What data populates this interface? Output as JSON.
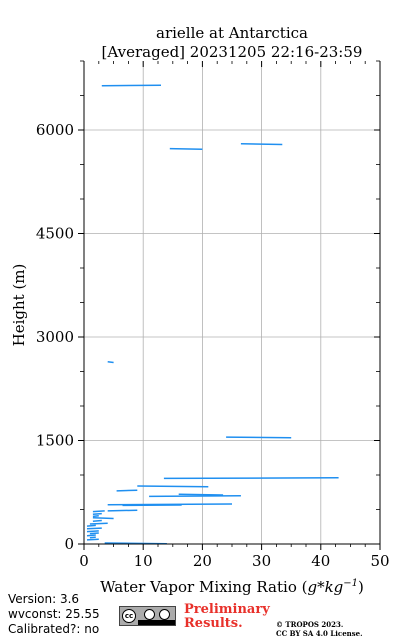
{
  "chart_data": {
    "type": "line",
    "title_line1": "arielle at Antarctica",
    "title_line2": "[Averaged] 20231205 22:16-23:59",
    "xlabel_prefix": "Water Vapor Mixing Ratio (",
    "xlabel_math": "g*kg",
    "xlabel_exp": "−1",
    "xlabel_suffix": ")",
    "ylabel": "Height (m)",
    "xlim": [
      0,
      50
    ],
    "ylim": [
      0,
      7000
    ],
    "xticks": [
      "0",
      "10",
      "20",
      "30",
      "40",
      "50"
    ],
    "yticks": [
      "0",
      "1500",
      "3000",
      "4500",
      "6000"
    ],
    "grid": true,
    "line_color": "#1f8ff0",
    "series": [
      {
        "points": [
          [
            3,
            6640
          ],
          [
            13,
            6650
          ]
        ]
      },
      {
        "points": [
          [
            14.5,
            5730
          ],
          [
            20,
            5720
          ]
        ]
      },
      {
        "points": [
          [
            26.5,
            5800
          ],
          [
            33.5,
            5790
          ]
        ]
      },
      {
        "points": [
          [
            4,
            2640
          ],
          [
            5,
            2630
          ]
        ]
      },
      {
        "points": [
          [
            24,
            1550
          ],
          [
            35,
            1540
          ]
        ]
      },
      {
        "points": [
          [
            13.5,
            950
          ],
          [
            43,
            960
          ]
        ]
      },
      {
        "points": [
          [
            9,
            840
          ],
          [
            21,
            830
          ]
        ]
      },
      {
        "points": [
          [
            16,
            720
          ],
          [
            23.5,
            710
          ]
        ]
      },
      {
        "points": [
          [
            11,
            690
          ],
          [
            26.5,
            700
          ]
        ]
      },
      {
        "points": [
          [
            5.5,
            770
          ],
          [
            9,
            780
          ]
        ]
      },
      {
        "points": [
          [
            4,
            570
          ],
          [
            25,
            580
          ]
        ]
      },
      {
        "points": [
          [
            6.5,
            560
          ],
          [
            16.5,
            565
          ]
        ]
      },
      {
        "points": [
          [
            4,
            480
          ],
          [
            9,
            490
          ]
        ]
      },
      {
        "points": [
          [
            1.5,
            470
          ],
          [
            3.5,
            480
          ]
        ]
      },
      {
        "points": [
          [
            1.5,
            430
          ],
          [
            3,
            440
          ]
        ]
      },
      {
        "points": [
          [
            1.5,
            400
          ],
          [
            2.5,
            410
          ]
        ]
      },
      {
        "points": [
          [
            1.5,
            380
          ],
          [
            5,
            370
          ]
        ]
      },
      {
        "points": [
          [
            1.5,
            330
          ],
          [
            3,
            340
          ]
        ]
      },
      {
        "points": [
          [
            1,
            290
          ],
          [
            4,
            300
          ]
        ]
      },
      {
        "points": [
          [
            0.5,
            260
          ],
          [
            2,
            270
          ]
        ]
      },
      {
        "points": [
          [
            0.5,
            220
          ],
          [
            3,
            230
          ]
        ]
      },
      {
        "points": [
          [
            0.5,
            180
          ],
          [
            2.5,
            190
          ]
        ]
      },
      {
        "points": [
          [
            1,
            150
          ],
          [
            2.5,
            160
          ]
        ]
      },
      {
        "points": [
          [
            0.5,
            120
          ],
          [
            2,
            130
          ]
        ]
      },
      {
        "points": [
          [
            1,
            90
          ],
          [
            2,
            100
          ]
        ]
      },
      {
        "points": [
          [
            0.5,
            60
          ],
          [
            2.5,
            70
          ]
        ]
      },
      {
        "points": [
          [
            3.5,
            15
          ],
          [
            14,
            5
          ]
        ]
      }
    ]
  },
  "footer": {
    "version": "Version: 3.6",
    "wvconst": "wvconst:  25.55",
    "calibrated": "Calibrated?: no",
    "license_badge": "cc by sa",
    "preliminary_line1": "Preliminary",
    "preliminary_line2": "Results.",
    "copyright_line1": "© TROPOS 2023.",
    "copyright_line2": "CC BY SA 4.0 License."
  }
}
